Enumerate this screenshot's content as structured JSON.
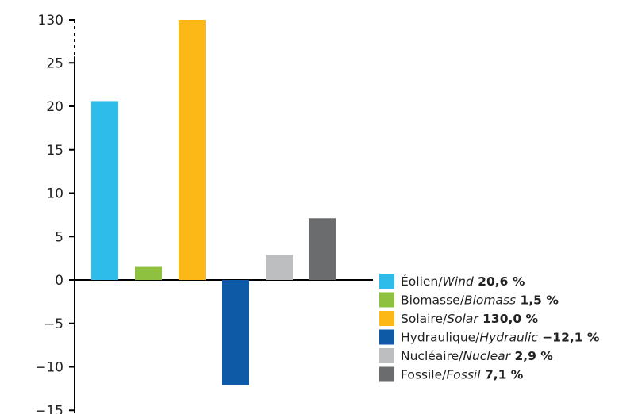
{
  "chart_data": {
    "type": "bar",
    "categories": [
      "Éolien/Wind",
      "Biomasse/Biomass",
      "Solaire/Solar",
      "Hydraulique/Hydraulic",
      "Nucléaire/Nuclear",
      "Fossile/Fossil"
    ],
    "values": [
      20.6,
      1.5,
      130.0,
      -12.1,
      2.9,
      7.1
    ],
    "y_ticks": [
      "130",
      "25",
      "20",
      "15",
      "10",
      "5",
      "0",
      "−5",
      "−10",
      "−15"
    ],
    "axis_break": "between 25 and 130 (Solaire bar shown truncated at top)",
    "ylim": [
      -15,
      30
    ],
    "grid": false,
    "legend_position": "bottom-right",
    "legend": [
      {
        "name_fr": "Éolien",
        "name_en": "Wind",
        "value_label": "20,6 %",
        "color": "#2EBDEB"
      },
      {
        "name_fr": "Biomasse",
        "name_en": "Biomass",
        "value_label": "1,5 %",
        "color": "#8DC13F"
      },
      {
        "name_fr": "Solaire",
        "name_en": "Solar",
        "value_label": "130,0 %",
        "color": "#FBB817"
      },
      {
        "name_fr": "Hydraulique",
        "name_en": "Hydraulic",
        "value_label": "−12,1 %",
        "color": "#0E5AA7"
      },
      {
        "name_fr": "Nucléaire",
        "name_en": "Nuclear",
        "value_label": "2,9 %",
        "color": "#BDBEC0"
      },
      {
        "name_fr": "Fossile",
        "name_en": "Fossil",
        "value_label": "7,1 %",
        "color": "#6B6C6E"
      }
    ]
  }
}
